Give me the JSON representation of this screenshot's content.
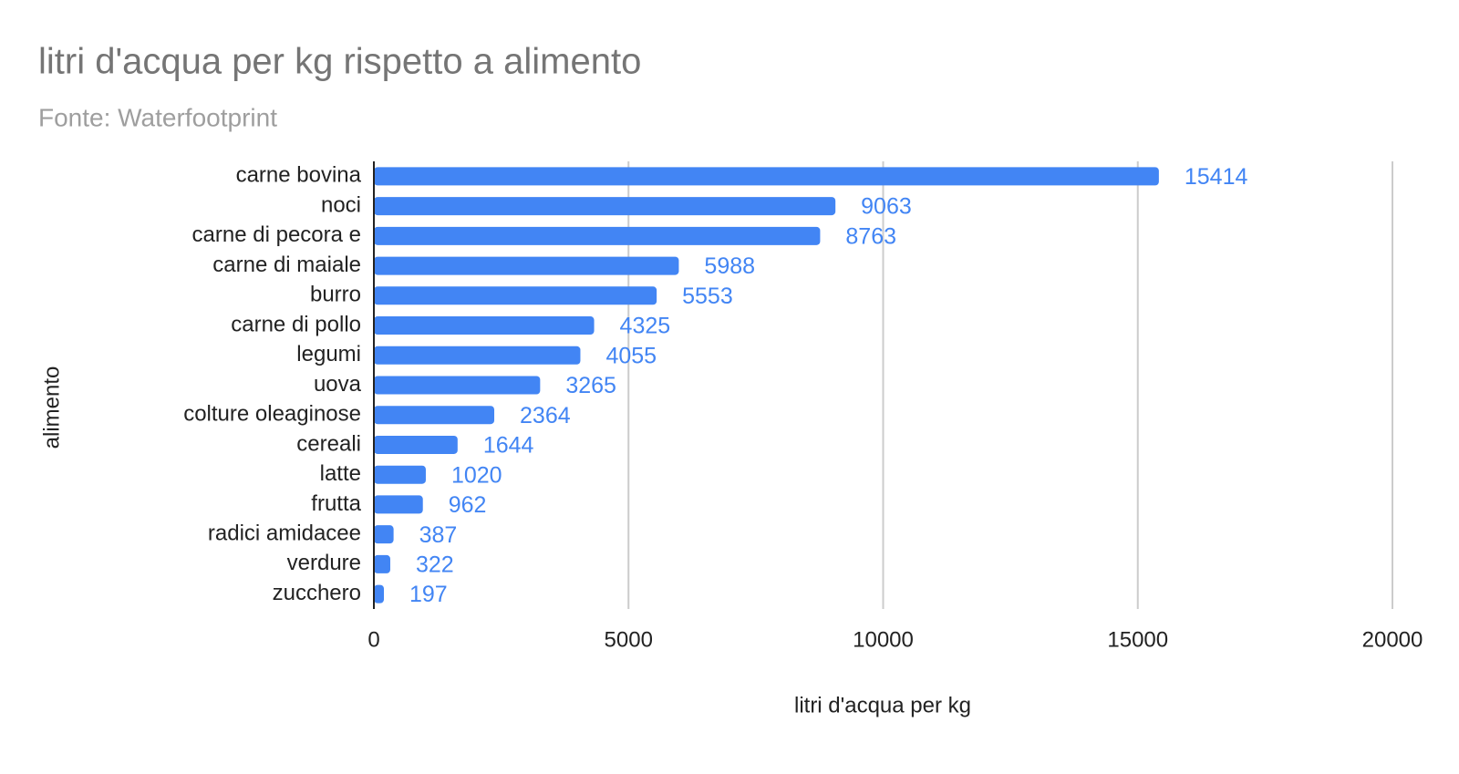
{
  "chart_data": {
    "type": "bar",
    "orientation": "horizontal",
    "title": "litri d'acqua per kg rispetto a alimento",
    "subtitle": "Fonte: Waterfootprint",
    "x_label": "litri d'acqua per kg",
    "y_label": "alimento",
    "categories": [
      "carne bovina",
      "noci",
      "carne di pecora e",
      "carne di maiale",
      "burro",
      "carne di pollo",
      "legumi",
      "uova",
      "colture oleaginose",
      "cereali",
      "latte",
      "frutta",
      "radici amidacee",
      "verdure",
      "zucchero"
    ],
    "values": [
      15414,
      9063,
      8763,
      5988,
      5553,
      4325,
      4055,
      3265,
      2364,
      1644,
      1020,
      962,
      387,
      322,
      197
    ],
    "color": "#4285f4",
    "xlim": [
      0,
      20000
    ],
    "xticks": [
      0,
      5000,
      10000,
      15000,
      20000
    ],
    "grid": true
  }
}
